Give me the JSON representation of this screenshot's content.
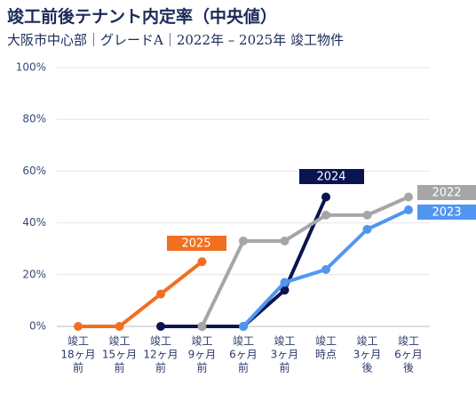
{
  "chart_data": {
    "type": "line",
    "title": "竣工前後テナント内定率（中央値）",
    "subtitle": "大阪市中心部｜グレードA｜2022年 – 2025年 竣工物件",
    "categories": [
      [
        "竣工",
        "18ヶ月",
        "前"
      ],
      [
        "竣工",
        "15ヶ月",
        "前"
      ],
      [
        "竣工",
        "12ヶ月",
        "前"
      ],
      [
        "竣工",
        "9ヶ月",
        "前"
      ],
      [
        "竣工",
        "6ヶ月",
        "前"
      ],
      [
        "竣工",
        "3ヶ月",
        "前"
      ],
      [
        "竣工",
        "時点"
      ],
      [
        "竣工",
        "3ヶ月",
        "後"
      ],
      [
        "竣工",
        "6ヶ月",
        "後"
      ]
    ],
    "series": [
      {
        "name": "2025",
        "color": "#f07020",
        "values": [
          0,
          0,
          12.5,
          25,
          null,
          null,
          null,
          null,
          null
        ]
      },
      {
        "name": "2024",
        "color": "#0a1450",
        "values": [
          null,
          null,
          0,
          0,
          0,
          14,
          50,
          null,
          null
        ]
      },
      {
        "name": "2023",
        "color": "#5096f0",
        "values": [
          null,
          null,
          null,
          null,
          0,
          17,
          22,
          37.5,
          45
        ]
      },
      {
        "name": "2022",
        "color": "#a6a6a6",
        "values": [
          null,
          null,
          null,
          0,
          33,
          33,
          43,
          43,
          50
        ]
      }
    ],
    "ylim": [
      0,
      100
    ],
    "yticks": [
      {
        "value": 0,
        "label": "0%"
      },
      {
        "value": 20,
        "label": "20%"
      },
      {
        "value": 40,
        "label": "40%"
      },
      {
        "value": 60,
        "label": "60%"
      },
      {
        "value": 80,
        "label": "80%"
      },
      {
        "value": 100,
        "label": "100%"
      }
    ],
    "grid": true
  }
}
